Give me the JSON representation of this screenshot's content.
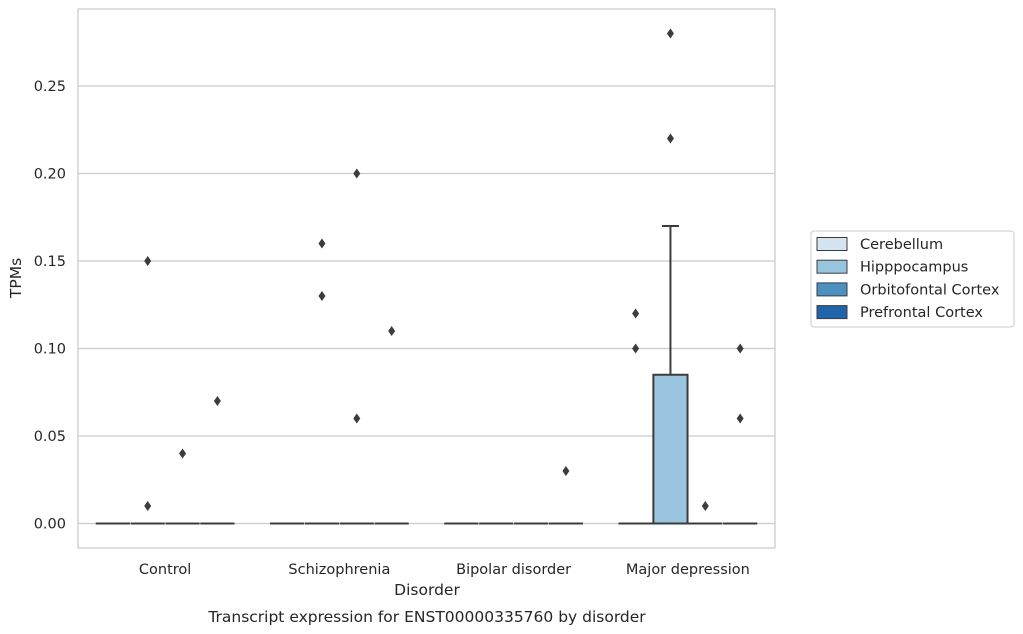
{
  "chart_data": {
    "type": "box",
    "title": "",
    "caption": "Transcript expression for ENST00000335760 by disorder",
    "xlabel": "Disorder",
    "ylabel": "TPMs",
    "categories": [
      "Control",
      "Schizophrenia",
      "Bipolar disorder",
      "Major depression"
    ],
    "ylim": [
      -0.014,
      0.294
    ],
    "yticks": [
      0.0,
      0.05,
      0.1,
      0.15,
      0.2,
      0.25
    ],
    "ytick_labels": [
      "0.00",
      "0.05",
      "0.10",
      "0.15",
      "0.20",
      "0.25"
    ],
    "grid": "horizontal",
    "legend_position": "right",
    "series": [
      {
        "name": "Cerebellum",
        "color": "#d4e4f1",
        "boxes": [
          {
            "category": "Control",
            "q1": 0,
            "median": 0,
            "q3": 0,
            "whisker_low": 0,
            "whisker_high": 0,
            "outliers": []
          },
          {
            "category": "Schizophrenia",
            "q1": 0,
            "median": 0,
            "q3": 0,
            "whisker_low": 0,
            "whisker_high": 0,
            "outliers": []
          },
          {
            "category": "Bipolar disorder",
            "q1": 0,
            "median": 0,
            "q3": 0,
            "whisker_low": 0,
            "whisker_high": 0,
            "outliers": []
          },
          {
            "category": "Major depression",
            "q1": 0,
            "median": 0,
            "q3": 0,
            "whisker_low": 0,
            "whisker_high": 0,
            "outliers": [
              0.12,
              0.1
            ]
          }
        ]
      },
      {
        "name": "Hipppocampus",
        "color": "#9ac5de",
        "boxes": [
          {
            "category": "Control",
            "q1": 0,
            "median": 0,
            "q3": 0,
            "whisker_low": 0,
            "whisker_high": 0,
            "outliers": [
              0.15,
              0.01
            ]
          },
          {
            "category": "Schizophrenia",
            "q1": 0,
            "median": 0,
            "q3": 0,
            "whisker_low": 0,
            "whisker_high": 0,
            "outliers": [
              0.16,
              0.13
            ]
          },
          {
            "category": "Bipolar disorder",
            "q1": 0,
            "median": 0,
            "q3": 0,
            "whisker_low": 0,
            "whisker_high": 0,
            "outliers": []
          },
          {
            "category": "Major depression",
            "q1": 0,
            "median": 0,
            "q3": 0.085,
            "whisker_low": 0,
            "whisker_high": 0.17,
            "outliers": [
              0.28,
              0.22
            ]
          }
        ]
      },
      {
        "name": "Orbitofontal Cortex",
        "color": "#4d91c3",
        "boxes": [
          {
            "category": "Control",
            "q1": 0,
            "median": 0,
            "q3": 0,
            "whisker_low": 0,
            "whisker_high": 0,
            "outliers": [
              0.04
            ]
          },
          {
            "category": "Schizophrenia",
            "q1": 0,
            "median": 0,
            "q3": 0,
            "whisker_low": 0,
            "whisker_high": 0,
            "outliers": [
              0.2,
              0.06
            ]
          },
          {
            "category": "Bipolar disorder",
            "q1": 0,
            "median": 0,
            "q3": 0,
            "whisker_low": 0,
            "whisker_high": 0,
            "outliers": []
          },
          {
            "category": "Major depression",
            "q1": 0,
            "median": 0,
            "q3": 0,
            "whisker_low": 0,
            "whisker_high": 0,
            "outliers": [
              0.01
            ]
          }
        ]
      },
      {
        "name": "Prefrontal Cortex",
        "color": "#2064aa",
        "boxes": [
          {
            "category": "Control",
            "q1": 0,
            "median": 0,
            "q3": 0,
            "whisker_low": 0,
            "whisker_high": 0,
            "outliers": [
              0.07
            ]
          },
          {
            "category": "Schizophrenia",
            "q1": 0,
            "median": 0,
            "q3": 0,
            "whisker_low": 0,
            "whisker_high": 0,
            "outliers": [
              0.11
            ]
          },
          {
            "category": "Bipolar disorder",
            "q1": 0,
            "median": 0,
            "q3": 0,
            "whisker_low": 0,
            "whisker_high": 0,
            "outliers": [
              0.03
            ]
          },
          {
            "category": "Major depression",
            "q1": 0,
            "median": 0,
            "q3": 0,
            "whisker_low": 0,
            "whisker_high": 0,
            "outliers": [
              0.1,
              0.06
            ]
          }
        ]
      }
    ]
  }
}
